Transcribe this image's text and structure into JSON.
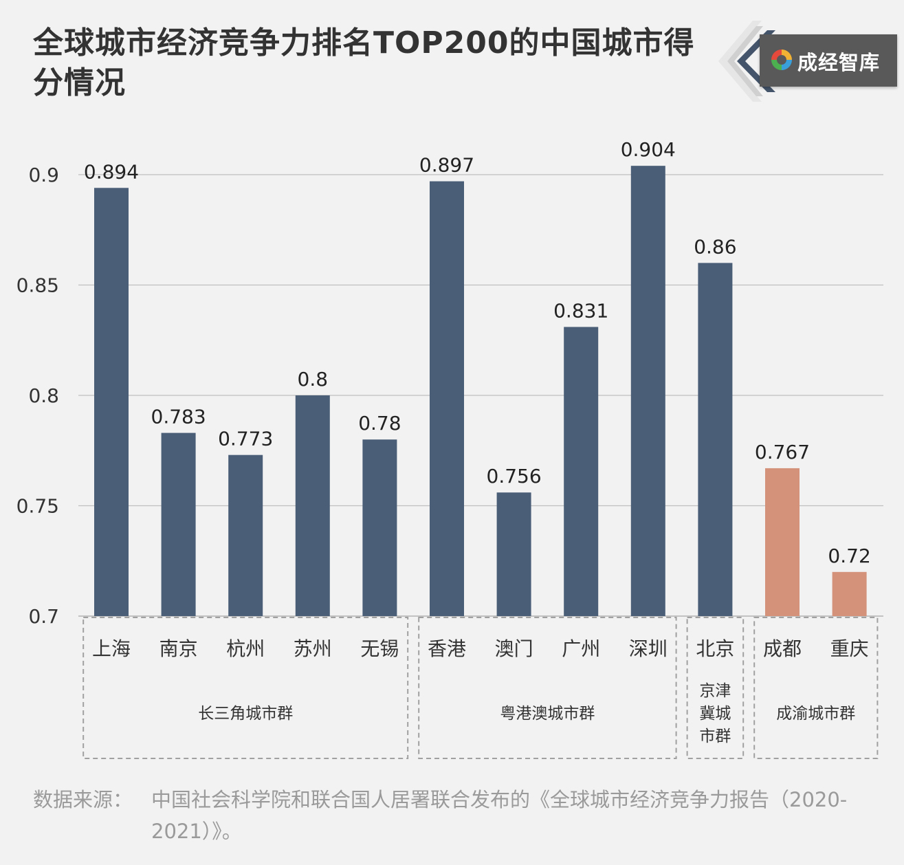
{
  "title": "全球城市经济竞争力排名TOP200的中国城市得分情况",
  "brand": {
    "name": "成经智库",
    "logo_icon": "swirl-logo-icon"
  },
  "footnote": {
    "label": "数据来源：",
    "text": "中国社会科学院和联合国人居署联合发布的《全球城市经济竞争力报告（2020-2021）》。"
  },
  "colors": {
    "primary_bar": "#4a5e77",
    "highlight_bar": "#d4927b",
    "grid": "#bfbfbf"
  },
  "chart_data": {
    "type": "bar",
    "categories": [
      "上海",
      "南京",
      "杭州",
      "苏州",
      "无锡",
      "香港",
      "澳门",
      "广州",
      "深圳",
      "北京",
      "成都",
      "重庆"
    ],
    "values": [
      0.894,
      0.783,
      0.773,
      0.8,
      0.78,
      0.897,
      0.756,
      0.831,
      0.904,
      0.86,
      0.767,
      0.72
    ],
    "data_labels": [
      "0.894",
      "0.783",
      "0.773",
      "0.8",
      "0.78",
      "0.897",
      "0.756",
      "0.831",
      "0.904",
      "0.86",
      "0.767",
      "0.72"
    ],
    "highlight_categories": [
      "成都",
      "重庆"
    ],
    "ylim": [
      0.7,
      0.9
    ],
    "yticks": [
      0.9,
      0.85,
      0.8,
      0.75,
      0.7
    ],
    "ytick_labels": [
      "0.9",
      "0.85",
      "0.8",
      "0.75",
      "0.7"
    ],
    "grid": true,
    "groups": [
      {
        "label": "长三角城市群",
        "lines": [
          "长三角城市群"
        ],
        "start": 0,
        "end": 4
      },
      {
        "label": "粤港澳城市群",
        "lines": [
          "粤港澳城市群"
        ],
        "start": 5,
        "end": 8
      },
      {
        "label": "京津冀城市群",
        "lines": [
          "京津",
          "冀城",
          "市群"
        ],
        "start": 9,
        "end": 9
      },
      {
        "label": "成渝城市群",
        "lines": [
          "成渝城市群"
        ],
        "start": 10,
        "end": 11
      }
    ]
  }
}
